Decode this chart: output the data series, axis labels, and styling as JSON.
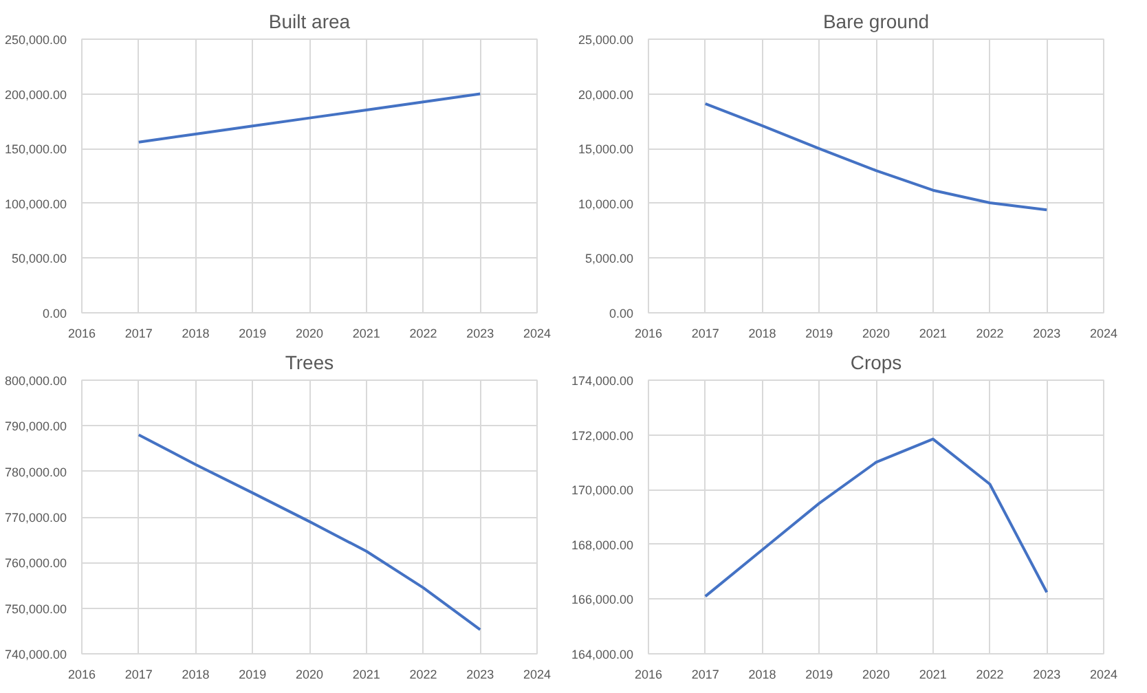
{
  "chart_data": [
    {
      "type": "line",
      "title": "Built area",
      "x": [
        2017,
        2018,
        2019,
        2020,
        2021,
        2022,
        2023
      ],
      "series": [
        {
          "color": "#4472c4",
          "values": [
            156000,
            163300,
            170700,
            178000,
            185300,
            192700,
            200000
          ]
        }
      ],
      "xlim": [
        2016,
        2024
      ],
      "xticks": [
        2016,
        2017,
        2018,
        2019,
        2020,
        2021,
        2022,
        2023,
        2024
      ],
      "ylim": [
        0,
        250000
      ],
      "yticks": [
        {
          "value": 0,
          "label": "0.00"
        },
        {
          "value": 50000,
          "label": "50,000.00"
        },
        {
          "value": 100000,
          "label": "100,000.00"
        },
        {
          "value": 150000,
          "label": "150,000.00"
        },
        {
          "value": 200000,
          "label": "200,000.00"
        },
        {
          "value": 250000,
          "label": "250,000.00"
        }
      ],
      "grid": true
    },
    {
      "type": "line",
      "title": "Bare ground",
      "x": [
        2017,
        2018,
        2019,
        2020,
        2021,
        2022,
        2023
      ],
      "series": [
        {
          "color": "#4472c4",
          "values": [
            19100,
            17100,
            15000,
            13000,
            11200,
            10050,
            9400
          ]
        }
      ],
      "xlim": [
        2016,
        2024
      ],
      "xticks": [
        2016,
        2017,
        2018,
        2019,
        2020,
        2021,
        2022,
        2023,
        2024
      ],
      "ylim": [
        0,
        25000
      ],
      "yticks": [
        {
          "value": 0,
          "label": "0.00"
        },
        {
          "value": 5000,
          "label": "5,000.00"
        },
        {
          "value": 10000,
          "label": "10,000.00"
        },
        {
          "value": 15000,
          "label": "15,000.00"
        },
        {
          "value": 20000,
          "label": "20,000.00"
        },
        {
          "value": 25000,
          "label": "25,000.00"
        }
      ],
      "grid": true
    },
    {
      "type": "line",
      "title": "Trees",
      "x": [
        2017,
        2018,
        2019,
        2020,
        2021,
        2022,
        2023
      ],
      "series": [
        {
          "color": "#4472c4",
          "values": [
            788000,
            781500,
            775300,
            769000,
            762500,
            754500,
            745300
          ]
        }
      ],
      "xlim": [
        2016,
        2024
      ],
      "xticks": [
        2016,
        2017,
        2018,
        2019,
        2020,
        2021,
        2022,
        2023,
        2024
      ],
      "ylim": [
        740000,
        800000
      ],
      "yticks": [
        {
          "value": 740000,
          "label": "740,000.00"
        },
        {
          "value": 750000,
          "label": "750,000.00"
        },
        {
          "value": 760000,
          "label": "760,000.00"
        },
        {
          "value": 770000,
          "label": "770,000.00"
        },
        {
          "value": 780000,
          "label": "780,000.00"
        },
        {
          "value": 790000,
          "label": "790,000.00"
        },
        {
          "value": 800000,
          "label": "800,000.00"
        }
      ],
      "grid": true
    },
    {
      "type": "line",
      "title": "Crops",
      "x": [
        2017,
        2018,
        2019,
        2020,
        2021,
        2022,
        2023
      ],
      "series": [
        {
          "color": "#4472c4",
          "values": [
            166100,
            167800,
            169500,
            171000,
            171850,
            170200,
            166250
          ]
        }
      ],
      "xlim": [
        2016,
        2024
      ],
      "xticks": [
        2016,
        2017,
        2018,
        2019,
        2020,
        2021,
        2022,
        2023,
        2024
      ],
      "ylim": [
        164000,
        174000
      ],
      "yticks": [
        {
          "value": 164000,
          "label": "164,000.00"
        },
        {
          "value": 166000,
          "label": "166,000.00"
        },
        {
          "value": 168000,
          "label": "168,000.00"
        },
        {
          "value": 170000,
          "label": "170,000.00"
        },
        {
          "value": 172000,
          "label": "172,000.00"
        },
        {
          "value": 174000,
          "label": "174,000.00"
        }
      ],
      "grid": true
    }
  ]
}
